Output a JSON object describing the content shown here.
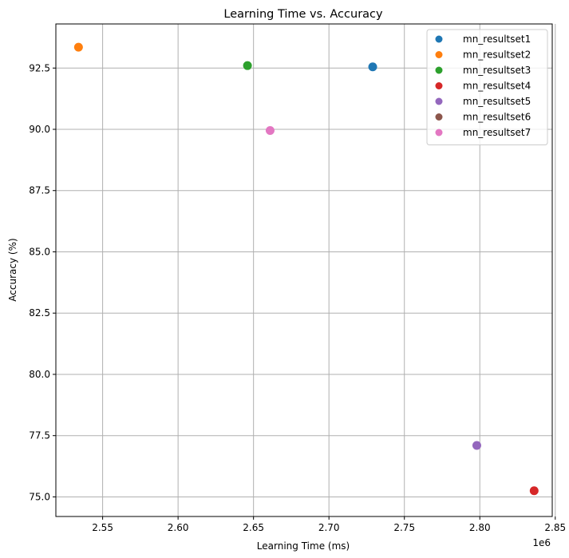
{
  "chart_data": {
    "type": "scatter",
    "title": "Learning Time vs. Accuracy",
    "xlabel": "Learning Time (ms)",
    "ylabel": "Accuracy (%)",
    "x_offset_label": "1e6",
    "xlim": [
      2519000,
      2848000
    ],
    "ylim": [
      74.2,
      94.3
    ],
    "x_ticks": [
      2550000,
      2600000,
      2650000,
      2700000,
      2750000,
      2800000,
      2850000
    ],
    "x_tick_labels": [
      "2.55",
      "2.60",
      "2.65",
      "2.70",
      "2.75",
      "2.80",
      "2.85"
    ],
    "y_ticks": [
      75.0,
      77.5,
      80.0,
      82.5,
      85.0,
      87.5,
      90.0,
      92.5
    ],
    "y_tick_labels": [
      "75.0",
      "77.5",
      "80.0",
      "82.5",
      "85.0",
      "87.5",
      "90.0",
      "92.5"
    ],
    "grid": true,
    "legend_position": "top-right",
    "series": [
      {
        "name": "mn_resultset1",
        "color": "#1f77b4",
        "points": [
          {
            "x": 2729000,
            "y": 92.55
          }
        ]
      },
      {
        "name": "mn_resultset2",
        "color": "#ff7f0e",
        "points": [
          {
            "x": 2534000,
            "y": 93.35
          }
        ]
      },
      {
        "name": "mn_resultset3",
        "color": "#2ca02c",
        "points": [
          {
            "x": 2646000,
            "y": 92.6
          }
        ]
      },
      {
        "name": "mn_resultset4",
        "color": "#d62728",
        "points": [
          {
            "x": 2836000,
            "y": 75.25
          }
        ]
      },
      {
        "name": "mn_resultset5",
        "color": "#9467bd",
        "points": [
          {
            "x": 2798000,
            "y": 77.1
          }
        ]
      },
      {
        "name": "mn_resultset6",
        "color": "#8c564b",
        "points": []
      },
      {
        "name": "mn_resultset7",
        "color": "#e377c2",
        "points": [
          {
            "x": 2661000,
            "y": 89.95
          }
        ]
      }
    ]
  }
}
